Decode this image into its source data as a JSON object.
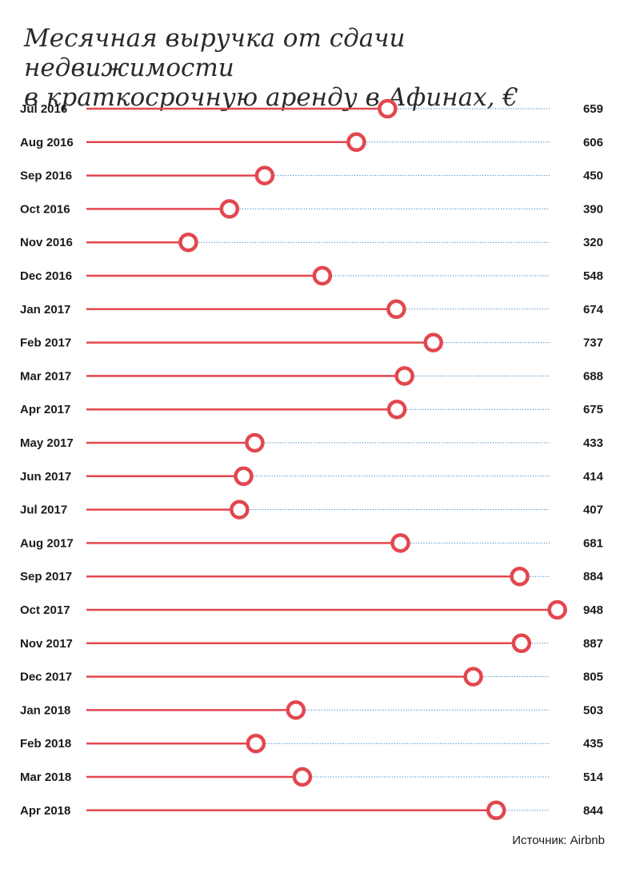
{
  "chart_data": {
    "type": "lollipop",
    "title_line1": "Месячная выручка от сдачи недвижимости",
    "title_line2": "в краткосрочную аренду в Афинах, €",
    "source": "Источник: Airbnb",
    "categories": [
      "Jul 2016",
      "Aug 2016",
      "Sep 2016",
      "Oct 2016",
      "Nov 2016",
      "Dec 2016",
      "Jan 2017",
      "Feb 2017",
      "Mar 2017",
      "Apr 2017",
      "May 2017",
      "Jun 2017",
      "Jul 2017",
      "Aug 2017",
      "Sep 2017",
      "Oct 2017",
      "Nov 2017",
      "Dec 2017",
      "Jan 2018",
      "Feb 2018",
      "Mar 2018",
      "Apr 2018"
    ],
    "values": [
      659,
      606,
      450,
      390,
      320,
      548,
      674,
      737,
      688,
      675,
      433,
      414,
      407,
      681,
      884,
      948,
      887,
      805,
      503,
      435,
      514,
      844
    ],
    "colors": {
      "stem": "#e2474f",
      "marker": "#e2474f",
      "guide": "#2b7bc0"
    }
  }
}
